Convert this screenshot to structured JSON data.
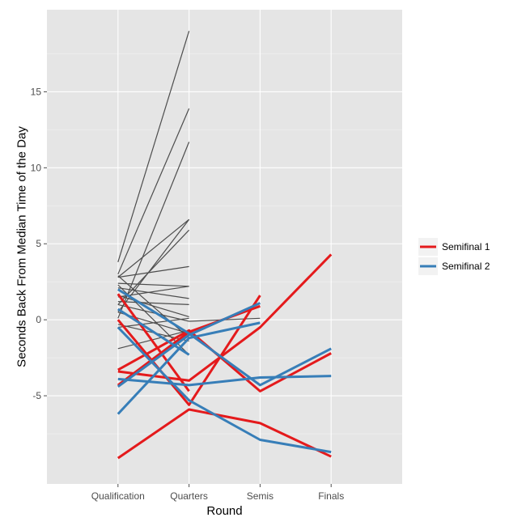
{
  "chart_data": {
    "type": "line",
    "xlabel": "Round",
    "ylabel": "Seconds Back From Median Time of the Day",
    "categories": [
      "Qualification",
      "Quarters",
      "Semis",
      "Finals"
    ],
    "yticks": [
      -5,
      0,
      5,
      10,
      15
    ],
    "ylim": [
      -10.8,
      20.4
    ],
    "grid": true,
    "legend_position": "right",
    "colors": {
      "gray": "#4d4d4d",
      "semifinal_1": "#e41a1c",
      "semifinal_2": "#377eb8",
      "panel_bg": "#e5e5e5",
      "grid": "#ffffff"
    },
    "legend": [
      {
        "label": "Semifinal 1",
        "color": "#e41a1c"
      },
      {
        "label": "Semifinal 2",
        "color": "#377eb8"
      }
    ],
    "series": [
      {
        "group": "other",
        "values": [
          3.8,
          19.0,
          null,
          null
        ]
      },
      {
        "group": "other",
        "values": [
          3.0,
          13.9,
          null,
          null
        ]
      },
      {
        "group": "other",
        "values": [
          0.1,
          11.7,
          null,
          null
        ]
      },
      {
        "group": "other",
        "values": [
          2.8,
          6.6,
          null,
          null
        ]
      },
      {
        "group": "other",
        "values": [
          0.5,
          6.6,
          null,
          null
        ]
      },
      {
        "group": "other",
        "values": [
          1.0,
          5.9,
          null,
          null
        ]
      },
      {
        "group": "other",
        "values": [
          2.8,
          3.5,
          null,
          null
        ]
      },
      {
        "group": "other",
        "values": [
          2.4,
          2.2,
          null,
          null
        ]
      },
      {
        "group": "other",
        "values": [
          1.5,
          2.2,
          null,
          null
        ]
      },
      {
        "group": "other",
        "values": [
          2.1,
          1.4,
          null,
          null
        ]
      },
      {
        "group": "other",
        "values": [
          1.2,
          1.0,
          null,
          null
        ]
      },
      {
        "group": "other",
        "values": [
          1.6,
          0.2,
          null,
          null
        ]
      },
      {
        "group": "other",
        "values": [
          -0.5,
          0.1,
          null,
          null
        ]
      },
      {
        "group": "other",
        "values": [
          1.0,
          -0.1,
          null,
          null
        ]
      },
      {
        "group": "other",
        "values": [
          -1.9,
          -0.7,
          null,
          null
        ]
      },
      {
        "group": "other",
        "values": [
          0.5,
          -0.9,
          null,
          null
        ]
      },
      {
        "group": "other",
        "values": [
          2.9,
          -1.2,
          null,
          null
        ]
      },
      {
        "group": "other",
        "values": [
          -0.3,
          -1.4,
          null,
          null
        ]
      },
      {
        "group": "other",
        "values": [
          2.3,
          -2.3,
          null,
          null
        ]
      },
      {
        "group": "other",
        "values": [
          null,
          -0.1,
          0.1,
          null
        ]
      },
      {
        "group": "semifinal_1",
        "values": [
          -9.1,
          -5.9,
          -6.8,
          -9.0
        ]
      },
      {
        "group": "semifinal_1",
        "values": [
          0.0,
          -5.6,
          1.6,
          null
        ]
      },
      {
        "group": "semifinal_1",
        "values": [
          -3.4,
          -4.0,
          -0.5,
          4.3
        ]
      },
      {
        "group": "semifinal_1",
        "values": [
          -4.3,
          -0.8,
          0.9,
          null
        ]
      },
      {
        "group": "semifinal_1",
        "values": [
          -3.3,
          -0.7,
          -4.7,
          -2.2
        ]
      },
      {
        "group": "semifinal_1",
        "values": [
          1.7,
          -4.7,
          null,
          null
        ]
      },
      {
        "group": "semifinal_2",
        "values": [
          -6.2,
          -1.2,
          -0.2,
          null
        ]
      },
      {
        "group": "semifinal_2",
        "values": [
          -3.9,
          -4.3,
          -3.8,
          -3.7
        ]
      },
      {
        "group": "semifinal_2",
        "values": [
          -0.5,
          -5.3,
          -7.9,
          -8.7
        ]
      },
      {
        "group": "semifinal_2",
        "values": [
          2.0,
          -0.9,
          -4.3,
          -1.9
        ]
      },
      {
        "group": "semifinal_2",
        "values": [
          -4.4,
          -1.0,
          1.1,
          null
        ]
      },
      {
        "group": "semifinal_2",
        "values": [
          0.7,
          -2.3,
          null,
          null
        ]
      }
    ]
  }
}
